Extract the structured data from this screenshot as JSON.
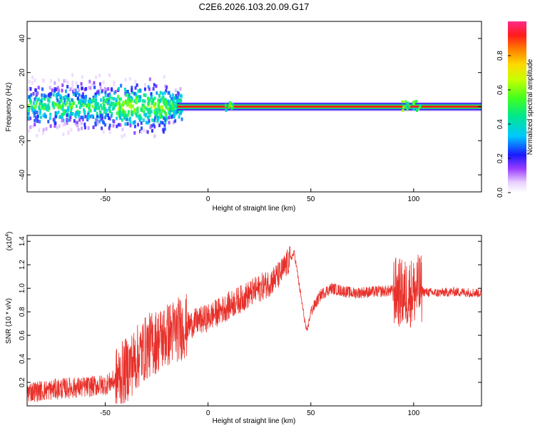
{
  "title": "C2E6.2026.103.20.09.G17",
  "chart_data": [
    {
      "type": "heatmap",
      "xlabel": "Height of straight line (km)",
      "ylabel": "Frequency (Hz)",
      "xlim": [
        -88,
        133
      ],
      "ylim": [
        -50,
        50
      ],
      "xticks": [
        -50,
        0,
        50,
        100
      ],
      "yticks": [
        -40,
        -20,
        0,
        20,
        40
      ],
      "colorbar": {
        "label": "Normalized spectral amplitude",
        "range": [
          0,
          1
        ],
        "ticks": [
          "0.0",
          "0.2",
          "0.4",
          "0.6",
          "0.8"
        ],
        "tick_values": [
          0.0,
          0.2,
          0.4,
          0.6,
          0.8
        ]
      },
      "description_segments": [
        {
          "x_range": [
            -88,
            -15
          ],
          "spread_hz": 10,
          "amplitude": 0.3
        },
        {
          "x_range": [
            -15,
            133
          ],
          "center_hz": 0,
          "amplitude": 0.95
        }
      ]
    },
    {
      "type": "line",
      "xlabel": "Height of straight line (km)",
      "ylabel": "SNR (10 * v/v)",
      "scale_label": "(x10",
      "scale_exp": "4",
      "xlim": [
        -88,
        133
      ],
      "ylim": [
        0,
        1.45
      ],
      "xticks": [
        -50,
        0,
        50,
        100
      ],
      "yticks": [
        "0.2",
        "0.4",
        "0.6",
        "0.8",
        "1.0",
        "1.2",
        "1.4"
      ],
      "ytick_values": [
        0.2,
        0.4,
        0.6,
        0.8,
        1.0,
        1.2,
        1.4
      ],
      "color": "#e8302a",
      "series": [
        {
          "name": "SNR",
          "x": [
            -88,
            -80,
            -70,
            -60,
            -50,
            -45,
            -40,
            -35,
            -30,
            -25,
            -20,
            -15,
            -10,
            -5,
            0,
            5,
            10,
            15,
            20,
            25,
            30,
            35,
            40,
            42,
            45,
            48,
            50,
            55,
            60,
            65,
            70,
            80,
            90,
            95,
            100,
            103,
            105,
            110,
            120,
            133
          ],
          "y": [
            0.12,
            0.13,
            0.15,
            0.16,
            0.18,
            0.22,
            0.3,
            0.4,
            0.5,
            0.55,
            0.6,
            0.65,
            0.68,
            0.72,
            0.75,
            0.8,
            0.85,
            0.9,
            0.95,
            1.0,
            1.05,
            1.12,
            1.25,
            1.3,
            0.95,
            0.62,
            0.8,
            0.95,
            1.0,
            0.98,
            0.96,
            0.97,
            0.98,
            0.95,
            0.97,
            1.0,
            0.97,
            0.96,
            0.97,
            0.96
          ]
        }
      ]
    }
  ]
}
